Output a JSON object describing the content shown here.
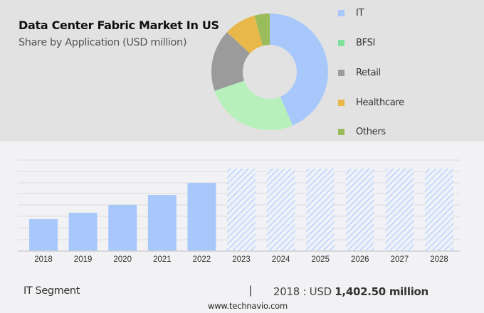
{
  "header": {
    "title": "Data Center Fabric Market In US",
    "subtitle": "Share by Application (USD million)"
  },
  "legend": [
    {
      "label": "IT",
      "color": "#a8c8fc"
    },
    {
      "label": "BFSI",
      "color": "#7ee29a"
    },
    {
      "label": "Retail",
      "color": "#9b9b9b"
    },
    {
      "label": "Healthcare",
      "color": "#e8b84a"
    },
    {
      "label": "Others",
      "color": "#9bbc5a"
    }
  ],
  "footer": {
    "segment": "IT Segment",
    "divider": "|",
    "value_prefix": "2018 : USD ",
    "value_bold": "1,402.50 million",
    "source": "www.technavio.com"
  },
  "chart_data": [
    {
      "type": "pie",
      "title": "Data Center Fabric Market In US",
      "subtitle": "Share by Application (USD million)",
      "donut": true,
      "categories": [
        "IT",
        "BFSI",
        "Retail",
        "Healthcare",
        "Others"
      ],
      "values": [
        43.6,
        26.1,
        17.2,
        8.9,
        4.2
      ],
      "colors": [
        "#a8c8fc",
        "#b8f0bc",
        "#9b9b9b",
        "#e8b84a",
        "#9bbc5a"
      ],
      "legend_position": "right"
    },
    {
      "type": "bar",
      "title": "IT Segment",
      "categories": [
        "2018",
        "2019",
        "2020",
        "2021",
        "2022",
        "2023",
        "2024",
        "2025",
        "2026",
        "2027",
        "2028"
      ],
      "values": [
        1402.5,
        1680,
        2030,
        2460,
        2990,
        null,
        null,
        null,
        null,
        null,
        null
      ],
      "forecast_years": [
        "2023",
        "2024",
        "2025",
        "2026",
        "2027",
        "2028"
      ],
      "annotation": "2018 : USD 1,402.50 million",
      "xlabel": "",
      "ylabel": "",
      "grid": true,
      "bar_color": "#a8c8fc"
    }
  ]
}
